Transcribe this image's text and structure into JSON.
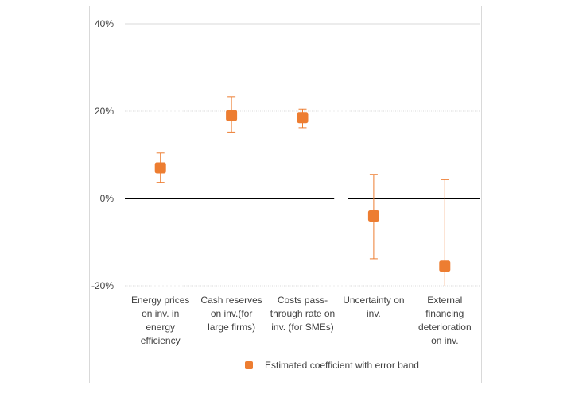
{
  "chart_data": {
    "type": "scatter",
    "title": "",
    "xlabel": "",
    "ylabel": "",
    "ylim": [
      -0.2,
      0.4
    ],
    "y_ticks": [
      0.4,
      0.2,
      0.0,
      -0.2
    ],
    "y_tick_labels": [
      "40%",
      "20%",
      "0%",
      "-20%"
    ],
    "grid": true,
    "legend_position": "bottom",
    "categories": [
      "Energy prices\non  inv. in\nenergy\nefficiency",
      "Cash reserves\non inv.(for\nlarge firms)",
      "Costs pass-\nthrough rate on\ninv. (for SMEs)",
      "Uncertainty on\ninv.",
      "External\nfinancing\ndeterioration\non inv."
    ],
    "series": [
      {
        "name": "Estimated coefficient with error band",
        "color": "#ED7D31",
        "values": [
          0.07,
          0.19,
          0.185,
          -0.04,
          -0.155
        ],
        "lower": [
          0.037,
          0.152,
          0.162,
          -0.138,
          -0.2
        ],
        "upper": [
          0.104,
          0.233,
          0.205,
          0.055,
          0.043
        ]
      }
    ]
  }
}
